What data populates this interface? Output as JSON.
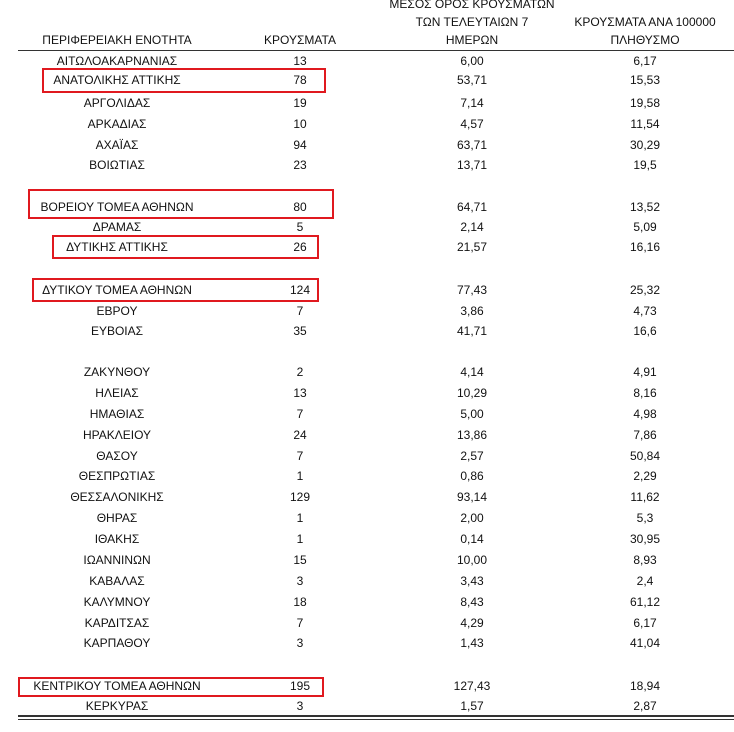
{
  "table": {
    "header": [
      "ΠΕΡΙΦΕΡΕΙΑΚΗ ΕΝΟΤΗΤΑ",
      "ΚΡΟΥΣΜΑΤΑ",
      [
        "ΜΕΣΟΣ ΟΡΟΣ ΚΡΟΥΣΜΑΤΩΝ",
        "ΤΩΝ ΤΕΛΕΥΤΑΙΩΝ 7",
        "ΗΜΕΡΩΝ"
      ],
      [
        "ΚΡΟΥΣΜΑΤΑ ΑΝΑ 100000",
        "ΠΛΗΘΥΣΜΟ"
      ]
    ],
    "rows": [
      [
        "ΑΙΤΩΛΟΑΚΑΡΝΑΝΙΑΣ",
        "13",
        "6,00",
        "6,17"
      ],
      [
        "ΑΝΑΤΟΛΙΚΗΣ ΑΤΤΙΚΗΣ",
        "78",
        "53,71",
        "15,53"
      ],
      [
        "ΑΡΓΟΛΙΔΑΣ",
        "19",
        "7,14",
        "19,58"
      ],
      [
        "ΑΡΚΑΔΙΑΣ",
        "10",
        "4,57",
        "11,54"
      ],
      [
        "ΑΧΑΪΑΣ",
        "94",
        "63,71",
        "30,29"
      ],
      [
        "ΒΟΙΩΤΙΑΣ",
        "23",
        "13,71",
        "19,5"
      ],
      [
        "ΒΟΡΕΙΟΥ ΤΟΜΕΑ ΑΘΗΝΩΝ",
        "80",
        "64,71",
        "13,52"
      ],
      [
        "ΔΡΑΜΑΣ",
        "5",
        "2,14",
        "5,09"
      ],
      [
        "ΔΥΤΙΚΗΣ ΑΤΤΙΚΗΣ",
        "26",
        "21,57",
        "16,16"
      ],
      [
        "ΔΥΤΙΚΟΥ ΤΟΜΕΑ ΑΘΗΝΩΝ",
        "124",
        "77,43",
        "25,32"
      ],
      [
        "ΕΒΡΟΥ",
        "7",
        "3,86",
        "4,73"
      ],
      [
        "ΕΥΒΟΙΑΣ",
        "35",
        "41,71",
        "16,6"
      ],
      [
        "ΖΑΚΥΝΘΟΥ",
        "2",
        "4,14",
        "4,91"
      ],
      [
        "ΗΛΕΙΑΣ",
        "13",
        "10,29",
        "8,16"
      ],
      [
        "ΗΜΑΘΙΑΣ",
        "7",
        "5,00",
        "4,98"
      ],
      [
        "ΗΡΑΚΛΕΙΟΥ",
        "24",
        "13,86",
        "7,86"
      ],
      [
        "ΘΑΣΟΥ",
        "7",
        "2,57",
        "50,84"
      ],
      [
        "ΘΕΣΠΡΩΤΙΑΣ",
        "1",
        "0,86",
        "2,29"
      ],
      [
        "ΘΕΣΣΑΛΟΝΙΚΗΣ",
        "129",
        "93,14",
        "11,62"
      ],
      [
        "ΘΗΡΑΣ",
        "1",
        "2,00",
        "5,3"
      ],
      [
        "ΙΘΑΚΗΣ",
        "1",
        "0,14",
        "30,95"
      ],
      [
        "ΙΩΑΝΝΙΝΩΝ",
        "15",
        "10,00",
        "8,93"
      ],
      [
        "ΚΑΒΑΛΑΣ",
        "3",
        "3,43",
        "2,4"
      ],
      [
        "ΚΑΛΥΜΝΟΥ",
        "18",
        "8,43",
        "61,12"
      ],
      [
        "ΚΑΡΔΙΤΣΑΣ",
        "7",
        "4,29",
        "6,17"
      ],
      [
        "ΚΑΡΠΑΘΟΥ",
        "3",
        "1,43",
        "41,04"
      ],
      [
        "ΚΕΝΤΡΙΚΟΥ ΤΟΜΕΑ ΑΘΗΝΩΝ",
        "195",
        "127,43",
        "18,94"
      ],
      [
        "ΚΕΡΚΥΡΑΣ",
        "3",
        "1,57",
        "2,87"
      ]
    ]
  }
}
